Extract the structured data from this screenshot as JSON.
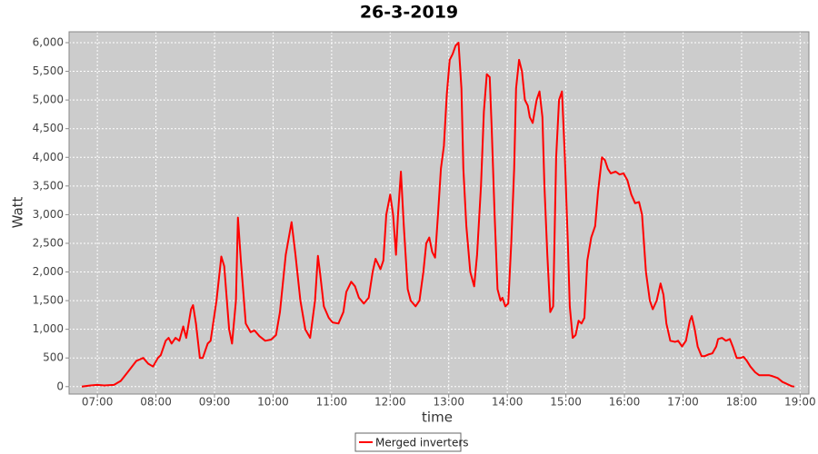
{
  "chart_data": {
    "type": "line",
    "title": "26-3-2019",
    "xlabel": "time",
    "ylabel": "Watt",
    "x": [
      "06:44",
      "06:53",
      "07:00",
      "07:07",
      "07:17",
      "07:24",
      "07:31",
      "07:40",
      "07:47",
      "07:52",
      "07:57",
      "08:02",
      "08:05",
      "08:10",
      "08:13",
      "08:16",
      "08:20",
      "08:24",
      "08:28",
      "08:31",
      "08:36",
      "08:38",
      "08:41",
      "08:45",
      "08:48",
      "08:53",
      "08:56",
      "09:02",
      "09:07",
      "09:10",
      "09:15",
      "09:18",
      "09:22",
      "09:24",
      "09:27",
      "09:32",
      "09:37",
      "09:41",
      "09:46",
      "09:52",
      "09:58",
      "10:03",
      "10:07",
      "10:13",
      "10:19",
      "10:23",
      "10:28",
      "10:33",
      "10:38",
      "10:43",
      "10:46",
      "10:48",
      "10:52",
      "10:57",
      "11:01",
      "11:07",
      "11:12",
      "11:15",
      "11:20",
      "11:24",
      "11:28",
      "11:33",
      "11:38",
      "11:42",
      "11:45",
      "11:50",
      "11:53",
      "11:56",
      "12:00",
      "12:03",
      "12:06",
      "12:08",
      "12:11",
      "12:14",
      "12:18",
      "12:21",
      "12:26",
      "12:30",
      "12:34",
      "12:37",
      "12:40",
      "12:43",
      "12:46",
      "12:49",
      "12:52",
      "12:55",
      "12:58",
      "13:01",
      "13:04",
      "13:07",
      "13:10",
      "13:13",
      "13:15",
      "13:18",
      "13:22",
      "13:26",
      "13:29",
      "13:33",
      "13:36",
      "13:39",
      "13:42",
      "13:44",
      "13:47",
      "13:50",
      "13:53",
      "13:55",
      "13:58",
      "14:01",
      "14:04",
      "14:07",
      "14:09",
      "14:12",
      "14:15",
      "14:18",
      "14:21",
      "14:23",
      "14:26",
      "14:30",
      "14:33",
      "14:36",
      "14:38",
      "14:41",
      "14:44",
      "14:47",
      "14:50",
      "14:53",
      "14:56",
      "14:59",
      "15:02",
      "15:04",
      "15:07",
      "15:10",
      "15:13",
      "15:16",
      "15:19",
      "15:22",
      "15:26",
      "15:30",
      "15:33",
      "15:37",
      "15:40",
      "15:43",
      "15:46",
      "15:51",
      "15:55",
      "15:59",
      "16:03",
      "16:07",
      "16:11",
      "16:15",
      "16:18",
      "16:22",
      "16:26",
      "16:29",
      "16:33",
      "16:37",
      "16:40",
      "16:43",
      "16:47",
      "16:52",
      "16:55",
      "16:59",
      "17:03",
      "17:07",
      "17:09",
      "17:12",
      "17:15",
      "17:19",
      "17:22",
      "17:26",
      "17:30",
      "17:34",
      "17:36",
      "17:40",
      "17:44",
      "17:48",
      "17:51",
      "17:55",
      "17:59",
      "18:02",
      "18:05",
      "18:09",
      "18:14",
      "18:18",
      "18:23",
      "18:28",
      "18:32",
      "18:37",
      "18:42",
      "18:46",
      "18:51",
      "18:54"
    ],
    "series": [
      {
        "name": "Merged inverters",
        "color": "#ff0000",
        "values": [
          0,
          20,
          30,
          20,
          30,
          100,
          250,
          450,
          500,
          400,
          350,
          500,
          550,
          800,
          850,
          750,
          850,
          800,
          1050,
          850,
          1350,
          1420,
          1100,
          500,
          500,
          750,
          800,
          1500,
          2270,
          2100,
          1000,
          750,
          1500,
          2950,
          2200,
          1100,
          950,
          980,
          880,
          800,
          820,
          900,
          1300,
          2300,
          2870,
          2300,
          1500,
          1000,
          850,
          1500,
          2280,
          2000,
          1400,
          1200,
          1120,
          1100,
          1300,
          1650,
          1830,
          1750,
          1550,
          1450,
          1550,
          2000,
          2230,
          2050,
          2200,
          3000,
          3350,
          3000,
          2300,
          3000,
          3750,
          2800,
          1700,
          1500,
          1400,
          1500,
          2000,
          2500,
          2600,
          2350,
          2250,
          3000,
          3800,
          4200,
          5100,
          5700,
          5800,
          5950,
          6000,
          5200,
          3800,
          2800,
          2000,
          1750,
          2300,
          3500,
          4800,
          5450,
          5400,
          4500,
          3000,
          1700,
          1500,
          1550,
          1400,
          1450,
          2500,
          3800,
          5200,
          5700,
          5500,
          5000,
          4900,
          4700,
          4600,
          5000,
          5150,
          4700,
          3500,
          2300,
          1300,
          1400,
          4000,
          5000,
          5150,
          4000,
          2500,
          1400,
          850,
          900,
          1150,
          1100,
          1200,
          2200,
          2600,
          2800,
          3400,
          4000,
          3950,
          3800,
          3720,
          3750,
          3700,
          3720,
          3600,
          3350,
          3200,
          3220,
          3000,
          2000,
          1500,
          1350,
          1500,
          1800,
          1600,
          1100,
          800,
          780,
          800,
          700,
          800,
          1150,
          1230,
          1000,
          700,
          530,
          530,
          560,
          580,
          700,
          830,
          850,
          800,
          830,
          700,
          500,
          500,
          520,
          460,
          350,
          250,
          200,
          200,
          200,
          180,
          150,
          80,
          50,
          10,
          0
        ]
      }
    ],
    "xlim": [
      "06:31",
      "19:09"
    ],
    "xticks": [
      "07:00",
      "08:00",
      "09:00",
      "10:00",
      "11:00",
      "12:00",
      "13:00",
      "14:00",
      "15:00",
      "16:00",
      "17:00",
      "18:00",
      "19:00"
    ],
    "ylim": [
      -130,
      6190
    ],
    "yticks": [
      0,
      500,
      {
        "value": 1000,
        "label": "1,000"
      },
      {
        "value": 1500,
        "label": "1,500"
      },
      {
        "value": 2000,
        "label": "2,000"
      },
      {
        "value": 2500,
        "label": "2,500"
      },
      {
        "value": 3000,
        "label": "3,000"
      },
      {
        "value": 3500,
        "label": "3,500"
      },
      {
        "value": 4000,
        "label": "4,000"
      },
      {
        "value": 4500,
        "label": "4,500"
      },
      {
        "value": 5000,
        "label": "5,000"
      },
      {
        "value": 5500,
        "label": "5,500"
      },
      {
        "value": 6000,
        "label": "6,000"
      }
    ],
    "grid": true,
    "legend": "bottom"
  }
}
